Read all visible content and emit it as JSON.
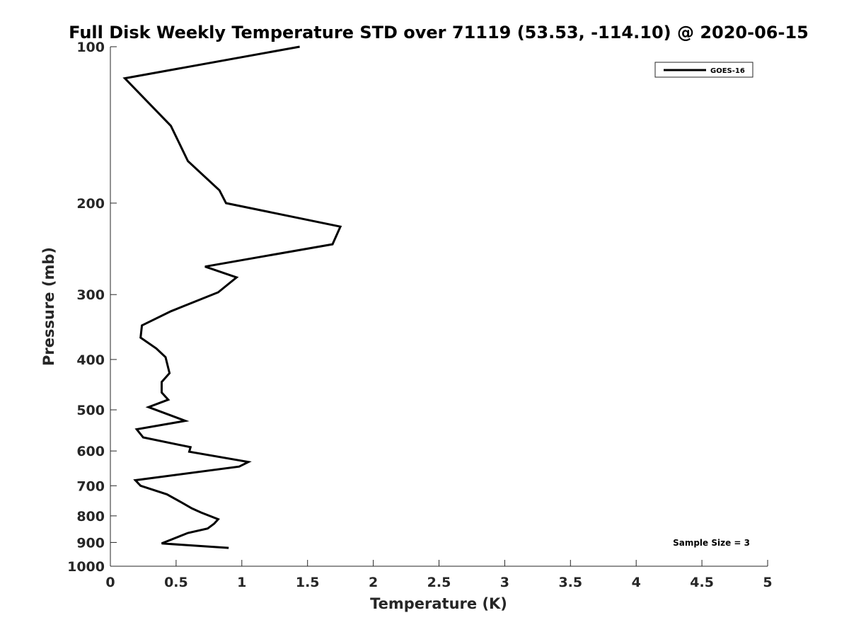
{
  "chart_data": {
    "type": "line",
    "title": "Full Disk Weekly Temperature STD over 71119 (53.53, -114.10) @ 2020-06-15",
    "xlabel": "Temperature (K)",
    "ylabel": "Pressure (mb)",
    "xlim": [
      0,
      5
    ],
    "ylim": [
      100,
      1000
    ],
    "yscale": "log",
    "y_reversed": true,
    "grid": false,
    "legend_position": "top-right",
    "x_ticks": [
      0,
      0.5,
      1,
      1.5,
      2,
      2.5,
      3,
      3.5,
      4,
      4.5,
      5
    ],
    "x_tick_labels": [
      "0",
      "0.5",
      "1",
      "1.5",
      "2",
      "2.5",
      "3",
      "3.5",
      "4",
      "4.5",
      "5"
    ],
    "y_ticks": [
      100,
      200,
      300,
      400,
      500,
      600,
      700,
      800,
      900,
      1000
    ],
    "y_tick_labels": [
      "100",
      "200",
      "300",
      "400",
      "500",
      "600",
      "700",
      "800",
      "900",
      "1000"
    ],
    "series": [
      {
        "name": "GOES-16",
        "color": "#000000",
        "x": [
          1.44,
          0.11,
          0.46,
          0.59,
          0.83,
          0.88,
          1.75,
          1.69,
          0.72,
          0.96,
          0.82,
          0.46,
          0.24,
          0.23,
          0.35,
          0.42,
          0.45,
          0.39,
          0.39,
          0.44,
          0.29,
          0.57,
          0.2,
          0.25,
          0.61,
          0.6,
          1.05,
          0.98,
          0.19,
          0.23,
          0.43,
          0.55,
          0.62,
          0.69,
          0.82,
          0.79,
          0.74,
          0.59,
          0.39,
          0.9
        ],
        "y": [
          100,
          115,
          142,
          166,
          189,
          200,
          222,
          240,
          265,
          278,
          297,
          323,
          344,
          363,
          381,
          396,
          425,
          442,
          463,
          478,
          494,
          525,
          545,
          565,
          590,
          602,
          630,
          643,
          683,
          700,
          727,
          756,
          774,
          788,
          812,
          828,
          846,
          863,
          904,
          922
        ]
      }
    ],
    "annotations": [
      "Sample Size = 3"
    ]
  }
}
